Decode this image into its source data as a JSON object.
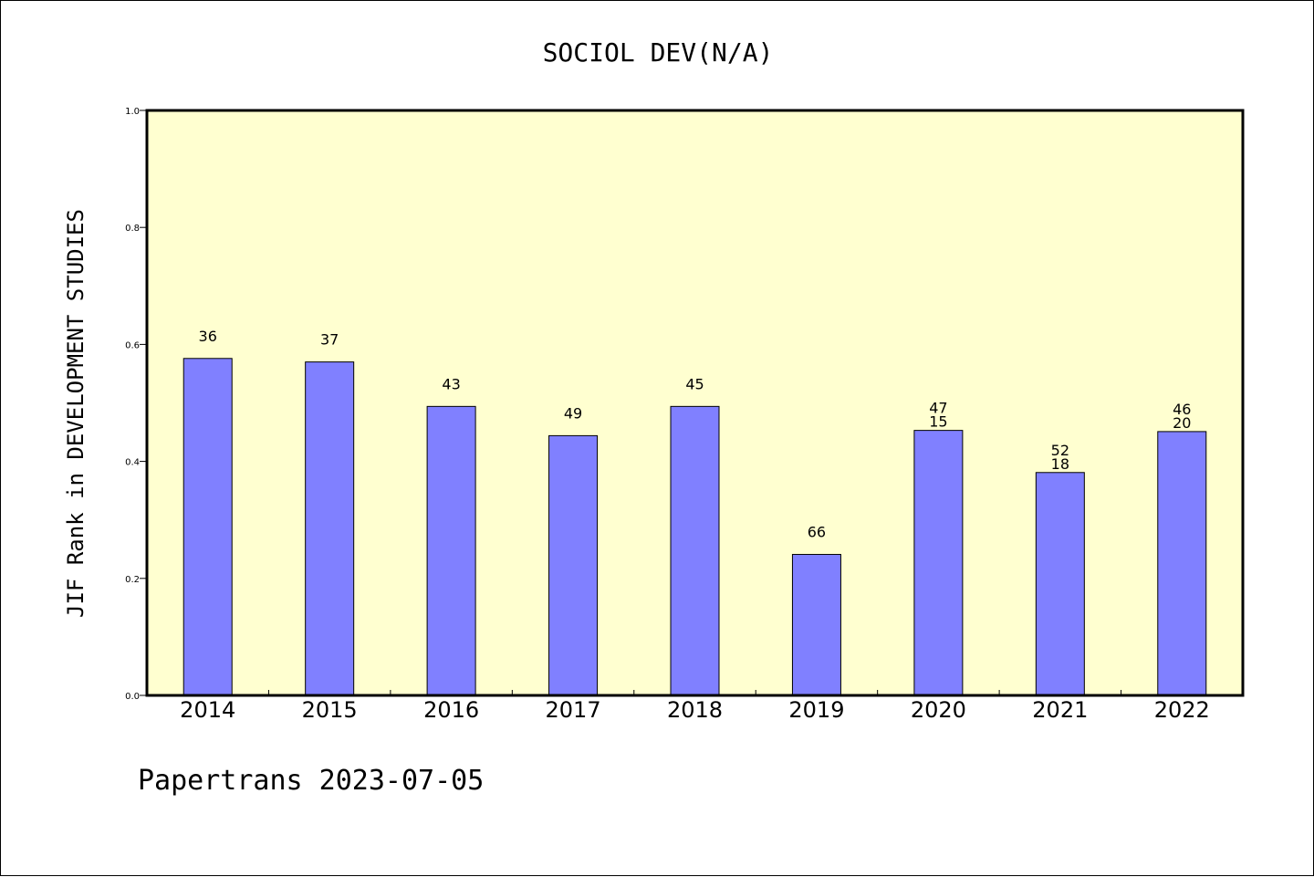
{
  "chart_data": {
    "type": "bar",
    "title": "SOCIOL DEV(N/A)",
    "ylabel": "JIF Rank in DEVELOPMENT STUDIES",
    "xlabel": "",
    "ylim": [
      0,
      1.0
    ],
    "yticks": [
      "0.0",
      "0.2",
      "0.4",
      "0.6",
      "0.8",
      "1.0"
    ],
    "categories": [
      "2014",
      "2015",
      "2016",
      "2017",
      "2018",
      "2019",
      "2020",
      "2021",
      "2022"
    ],
    "values": [
      0.576,
      0.57,
      0.494,
      0.444,
      0.494,
      0.241,
      0.453,
      0.381,
      0.451
    ],
    "bar_labels": [
      [
        "36"
      ],
      [
        "37"
      ],
      [
        "43"
      ],
      [
        "49"
      ],
      [
        "45"
      ],
      [
        "66"
      ],
      [
        "47",
        "15"
      ],
      [
        "52",
        "18"
      ],
      [
        "46",
        "20"
      ]
    ],
    "grid": false,
    "colors": {
      "bar": "#8080ff",
      "plot_bg": "#ffffd0",
      "axis": "#000000"
    }
  },
  "footer": "Papertrans 2023-07-05"
}
